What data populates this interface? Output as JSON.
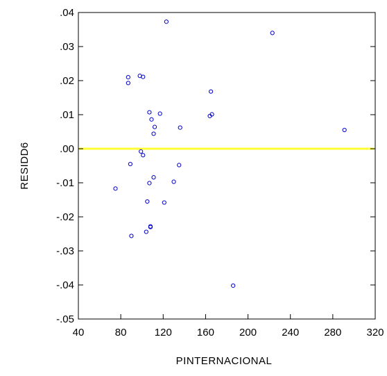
{
  "chart_data": {
    "type": "scatter",
    "title": "",
    "xlabel": "PINTERNACIONAL",
    "ylabel": "RESIDD6",
    "xlim": [
      40,
      320
    ],
    "ylim": [
      -0.05,
      0.04
    ],
    "x_ticks": [
      40,
      80,
      120,
      160,
      200,
      240,
      280,
      320
    ],
    "x_tick_labels": [
      "40",
      "80",
      "120",
      "160",
      "200",
      "240",
      "280",
      "320"
    ],
    "y_ticks": [
      0.04,
      0.03,
      0.02,
      0.01,
      0.0,
      -0.01,
      -0.02,
      -0.03,
      -0.04,
      -0.05
    ],
    "y_tick_labels": [
      ".04",
      ".03",
      ".02",
      ".01",
      ".00",
      "-.01",
      "-.02",
      "-.03",
      "-.04",
      "-.05"
    ],
    "grid": false,
    "reference_line": {
      "y": 0.0,
      "color": "#ffff33"
    },
    "marker_color": "#0000cc",
    "points": [
      {
        "x": 123,
        "y": 0.0373
      },
      {
        "x": 223,
        "y": 0.034
      },
      {
        "x": 87,
        "y": 0.021
      },
      {
        "x": 87,
        "y": 0.0193
      },
      {
        "x": 98,
        "y": 0.0214
      },
      {
        "x": 101,
        "y": 0.0211
      },
      {
        "x": 165,
        "y": 0.0168
      },
      {
        "x": 107,
        "y": 0.0107
      },
      {
        "x": 117,
        "y": 0.0103
      },
      {
        "x": 164,
        "y": 0.0096
      },
      {
        "x": 166,
        "y": 0.0101
      },
      {
        "x": 109,
        "y": 0.0086
      },
      {
        "x": 112,
        "y": 0.0064
      },
      {
        "x": 136,
        "y": 0.0062
      },
      {
        "x": 291,
        "y": 0.0055
      },
      {
        "x": 111,
        "y": 0.0044
      },
      {
        "x": 99,
        "y": -0.0008
      },
      {
        "x": 101,
        "y": -0.0019
      },
      {
        "x": 89,
        "y": -0.0045
      },
      {
        "x": 135,
        "y": -0.0048
      },
      {
        "x": 111,
        "y": -0.0084
      },
      {
        "x": 130,
        "y": -0.0097
      },
      {
        "x": 107,
        "y": -0.0101
      },
      {
        "x": 75,
        "y": -0.0117
      },
      {
        "x": 105,
        "y": -0.0155
      },
      {
        "x": 121,
        "y": -0.0158
      },
      {
        "x": 108,
        "y": -0.0228
      },
      {
        "x": 108,
        "y": -0.023
      },
      {
        "x": 104,
        "y": -0.0244
      },
      {
        "x": 90,
        "y": -0.0256
      },
      {
        "x": 186,
        "y": -0.0402
      }
    ]
  }
}
